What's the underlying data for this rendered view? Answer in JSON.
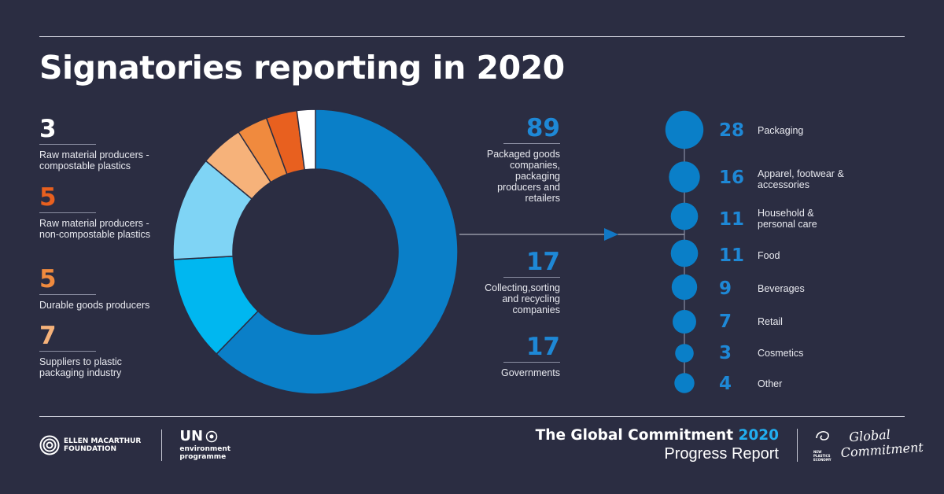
{
  "title": "Signatories reporting in 2020",
  "colors": {
    "background": "#2b2d42",
    "packaged_goods": "#0a7fc8",
    "collecting": "#00b7f0",
    "governments": "#7fd4f5",
    "suppliers": "#f6b27a",
    "durable": "#f08a3e",
    "non_compostable": "#e8601f",
    "compostable": "#ffffff",
    "bubble": "#0a7fc8",
    "number_blue": "#1e88d6"
  },
  "left_legend": [
    {
      "value": "3",
      "label": "Raw material producers - compostable plastics",
      "color": "#ffffff"
    },
    {
      "value": "5",
      "label": "Raw material producers - non-compostable plastics",
      "color": "#e8601f"
    },
    {
      "value": "5",
      "label": "Durable goods producers",
      "color": "#f08a3e"
    },
    {
      "value": "7",
      "label": "Suppliers to plastic packaging industry",
      "color": "#f6b27a"
    }
  ],
  "middle_legend": [
    {
      "value": "89",
      "label": "Packaged goods companies, packaging producers and retailers"
    },
    {
      "value": "17",
      "label": "Collecting,sorting and recycling companies"
    },
    {
      "value": "17",
      "label": "Governments"
    }
  ],
  "breakdown": [
    {
      "value": "28",
      "label": "Packaging"
    },
    {
      "value": "16",
      "label": "Apparel, footwear & accessories"
    },
    {
      "value": "11",
      "label": "Household & personal care"
    },
    {
      "value": "11",
      "label": "Food"
    },
    {
      "value": "9",
      "label": "Beverages"
    },
    {
      "value": "7",
      "label": "Retail"
    },
    {
      "value": "3",
      "label": "Cosmetics"
    },
    {
      "value": "4",
      "label": "Other"
    }
  ],
  "chart_data": [
    {
      "type": "pie",
      "style": "donut",
      "categories": [
        "Packaged goods companies, packaging producers and retailers",
        "Collecting,sorting and recycling companies",
        "Governments",
        "Suppliers to plastic packaging industry",
        "Durable goods producers",
        "Raw material producers - non-compostable plastics",
        "Raw material producers - compostable plastics"
      ],
      "values": [
        89,
        17,
        17,
        7,
        5,
        5,
        3
      ],
      "colors": [
        "#0a7fc8",
        "#00b7f0",
        "#7fd4f5",
        "#f6b27a",
        "#f08a3e",
        "#e8601f",
        "#ffffff"
      ],
      "start": "top",
      "direction": "clockwise"
    },
    {
      "type": "bubble",
      "categories": [
        "Packaging",
        "Apparel, footwear & accessories",
        "Household & personal care",
        "Food",
        "Beverages",
        "Retail",
        "Cosmetics",
        "Other"
      ],
      "values": [
        28,
        16,
        11,
        11,
        9,
        7,
        3,
        4
      ]
    }
  ],
  "footer": {
    "emf_name_1": "ELLEN MACARTHUR",
    "emf_name_2": "FOUNDATION",
    "un_title": "UN",
    "un_sub_1": "environment",
    "un_sub_2": "programme",
    "report_title": "The Global Commitment",
    "report_year": "2020",
    "report_subtitle": "Progress Report",
    "npe_1": "NEW",
    "npe_2": "PLASTICS",
    "npe_3": "ECONOMY",
    "gc_script_1": "Global",
    "gc_script_2": "Commitment"
  }
}
